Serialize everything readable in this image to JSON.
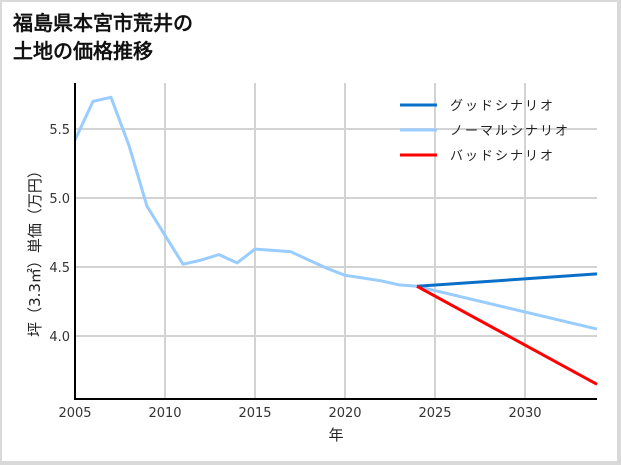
{
  "title_line1": "福島県本宮市荒井の",
  "title_line2": "土地の価格推移",
  "chart_data": {
    "type": "line",
    "title": "福島県本宮市荒井の土地の価格推移",
    "xlabel": "年",
    "ylabel": "坪（3.3㎡）単価（万円）",
    "xlim": [
      2005,
      2034
    ],
    "ylim": [
      3.55,
      5.86
    ],
    "x_ticks": [
      "2005",
      "2010",
      "2015",
      "2020",
      "2025",
      "2030"
    ],
    "y_ticks": [
      "4.0",
      "4.5",
      "5.0",
      "5.5"
    ],
    "grid": true,
    "legend_position": "upper right",
    "series": [
      {
        "name": "グッドシナリオ",
        "color": "#0a6fc8",
        "x": [
          2024,
          2034
        ],
        "values": [
          4.36,
          4.45
        ]
      },
      {
        "name": "ノーマルシナリオ",
        "color": "#99ccff",
        "x": [
          2005,
          2006,
          2007,
          2008,
          2009,
          2010,
          2011,
          2012,
          2013,
          2014,
          2015,
          2016,
          2017,
          2018,
          2019,
          2020,
          2021,
          2022,
          2023,
          2024,
          2034
        ],
        "values": [
          5.42,
          5.7,
          5.73,
          5.38,
          4.94,
          4.73,
          4.52,
          4.55,
          4.59,
          4.53,
          4.63,
          4.62,
          4.61,
          4.55,
          4.49,
          4.44,
          4.42,
          4.4,
          4.37,
          4.36,
          4.05
        ]
      },
      {
        "name": "バッドシナリオ",
        "color": "#ff0000",
        "x": [
          2024,
          2034
        ],
        "values": [
          4.36,
          3.65
        ]
      }
    ]
  }
}
